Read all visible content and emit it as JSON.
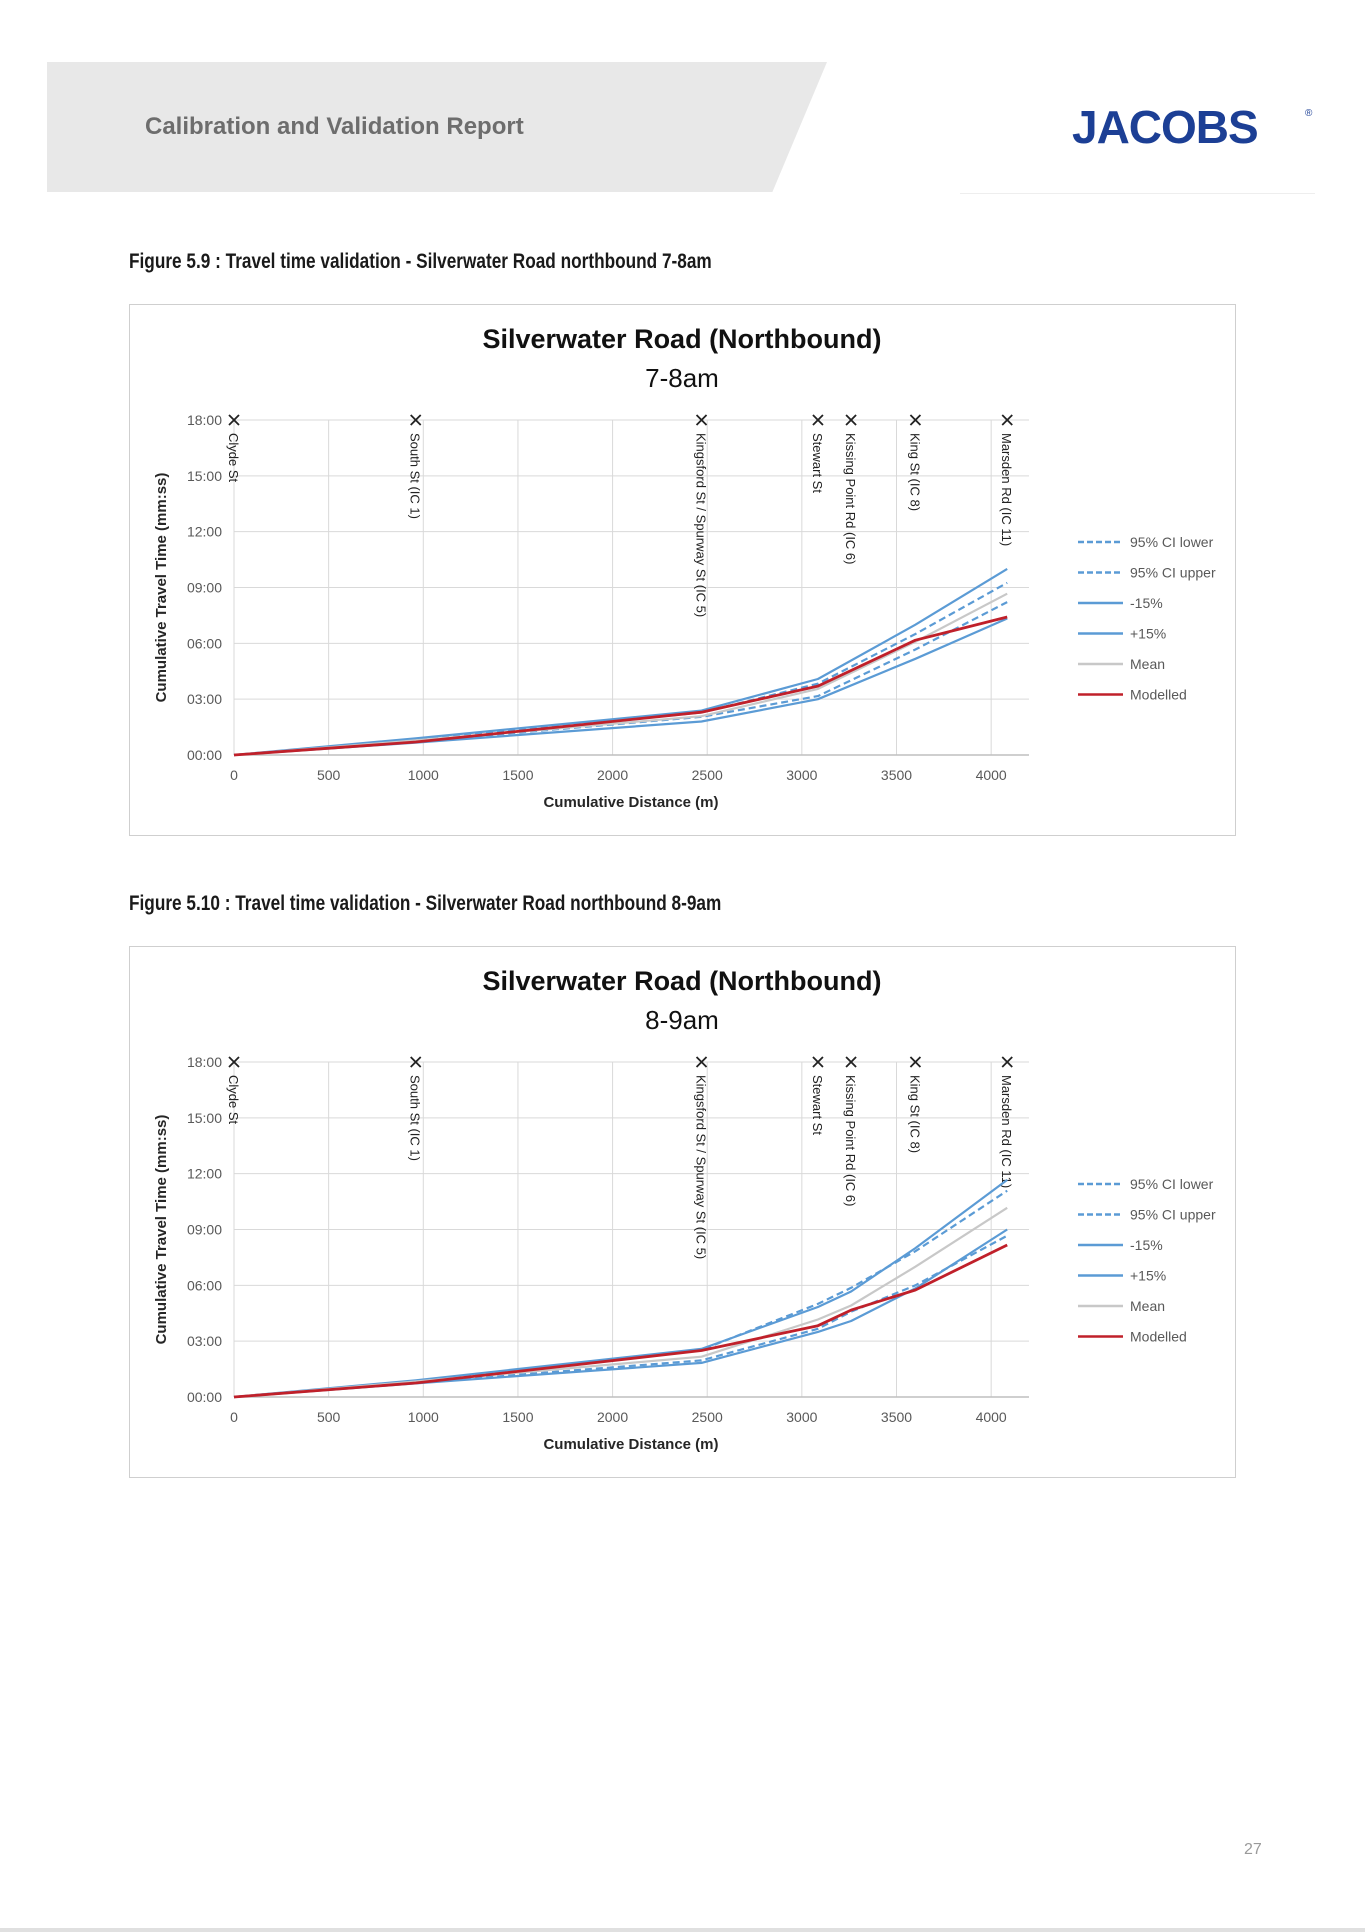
{
  "header": {
    "title": "Calibration and Validation Report",
    "logo_text": "JACOBS",
    "logo_mark": "®"
  },
  "figures": [
    {
      "caption": "Figure 5.9 : Travel time validation - Silverwater Road northbound 7-8am"
    },
    {
      "caption": "Figure 5.10 : Travel time validation - Silverwater Road northbound 8-9am"
    }
  ],
  "page_number": "27",
  "colors": {
    "blue": "#5b9bd5",
    "red": "#c0202a",
    "grey": "#c8c8c8",
    "logo": "#1c3f95"
  },
  "chart_data": [
    {
      "type": "line",
      "title": "Silverwater Road (Northbound)",
      "subtitle": "7-8am",
      "xlabel": "Cumulative Distance (m)",
      "ylabel": "Cumulative Travel Time (mm:ss)",
      "xlim": [
        0,
        4200
      ],
      "ylim": [
        0,
        1080
      ],
      "x_ticks": [
        0,
        500,
        1000,
        1500,
        2000,
        2500,
        3000,
        3500,
        4000
      ],
      "y_ticks": [
        0,
        180,
        360,
        540,
        720,
        900,
        1080
      ],
      "y_tick_labels": [
        "00:00",
        "03:00",
        "06:00",
        "09:00",
        "12:00",
        "15:00",
        "18:00"
      ],
      "grid": true,
      "legend_position": "right",
      "markers": [
        {
          "label": "Clyde St",
          "x": 0
        },
        {
          "label": "South St (IC 1)",
          "x": 960
        },
        {
          "label": "Kingsford St / Spurway St (IC 5)",
          "x": 2470
        },
        {
          "label": "Stewart St",
          "x": 3085
        },
        {
          "label": "Kissing Point Rd (IC 6)",
          "x": 3260
        },
        {
          "label": "King St (IC 8)",
          "x": 3600
        },
        {
          "label": "Marsden Rd (IC 11)",
          "x": 4085
        }
      ],
      "x": [
        0,
        960,
        2470,
        3085,
        3600,
        4085
      ],
      "series": [
        {
          "name": "95% CI lower",
          "style": "dashed",
          "color": "#5b9bd5",
          "values": [
            0,
            44,
            123,
            190,
            340,
            493
          ]
        },
        {
          "name": "95% CI upper",
          "style": "dashed",
          "color": "#5b9bd5",
          "values": [
            0,
            49,
            137,
            230,
            390,
            555
          ]
        },
        {
          "name": "-15%",
          "style": "solid",
          "color": "#5b9bd5",
          "values": [
            0,
            40,
            108,
            180,
            310,
            440
          ]
        },
        {
          "name": "+15%",
          "style": "solid",
          "color": "#5b9bd5",
          "values": [
            0,
            54,
            143,
            245,
            420,
            600
          ]
        },
        {
          "name": "Mean",
          "style": "solid",
          "color": "#c8c8c8",
          "values": [
            0,
            47,
            125,
            213,
            365,
            520
          ]
        },
        {
          "name": "Modelled",
          "style": "solid",
          "color": "#c0202a",
          "values": [
            0,
            42,
            138,
            222,
            370,
            445
          ]
        }
      ]
    },
    {
      "type": "line",
      "title": "Silverwater Road (Northbound)",
      "subtitle": "8-9am",
      "xlabel": "Cumulative Distance (m)",
      "ylabel": "Cumulative Travel Time (mm:ss)",
      "xlim": [
        0,
        4200
      ],
      "ylim": [
        0,
        1080
      ],
      "x_ticks": [
        0,
        500,
        1000,
        1500,
        2000,
        2500,
        3000,
        3500,
        4000
      ],
      "y_ticks": [
        0,
        180,
        360,
        540,
        720,
        900,
        1080
      ],
      "y_tick_labels": [
        "00:00",
        "03:00",
        "06:00",
        "09:00",
        "12:00",
        "15:00",
        "18:00"
      ],
      "grid": true,
      "legend_position": "right",
      "markers": [
        {
          "label": "Clyde St",
          "x": 0
        },
        {
          "label": "South St (IC 1)",
          "x": 960
        },
        {
          "label": "Kingsford St / Spurway St (IC 5)",
          "x": 2470
        },
        {
          "label": "Stewart St",
          "x": 3085
        },
        {
          "label": "Kissing Point Rd (IC 6)",
          "x": 3260
        },
        {
          "label": "King St (IC 8)",
          "x": 3600
        },
        {
          "label": "Marsden Rd (IC 11)",
          "x": 4085
        }
      ],
      "x": [
        0,
        960,
        2470,
        3085,
        3260,
        3600,
        4085
      ],
      "series": [
        {
          "name": "95% CI lower",
          "style": "dashed",
          "color": "#5b9bd5",
          "values": [
            0,
            46,
            118,
            220,
            275,
            360,
            520
          ]
        },
        {
          "name": "95% CI upper",
          "style": "dashed",
          "color": "#5b9bd5",
          "values": [
            0,
            51,
            152,
            300,
            352,
            470,
            665
          ]
        },
        {
          "name": "-15%",
          "style": "solid",
          "color": "#5b9bd5",
          "values": [
            0,
            44,
            110,
            210,
            245,
            350,
            540
          ]
        },
        {
          "name": "+15%",
          "style": "solid",
          "color": "#5b9bd5",
          "values": [
            0,
            54,
            155,
            290,
            340,
            480,
            700
          ]
        },
        {
          "name": "Mean",
          "style": "solid",
          "color": "#c8c8c8",
          "values": [
            0,
            50,
            130,
            250,
            295,
            420,
            610
          ]
        },
        {
          "name": "Modelled",
          "style": "solid",
          "color": "#c0202a",
          "values": [
            0,
            45,
            150,
            230,
            280,
            345,
            490
          ]
        }
      ]
    }
  ]
}
